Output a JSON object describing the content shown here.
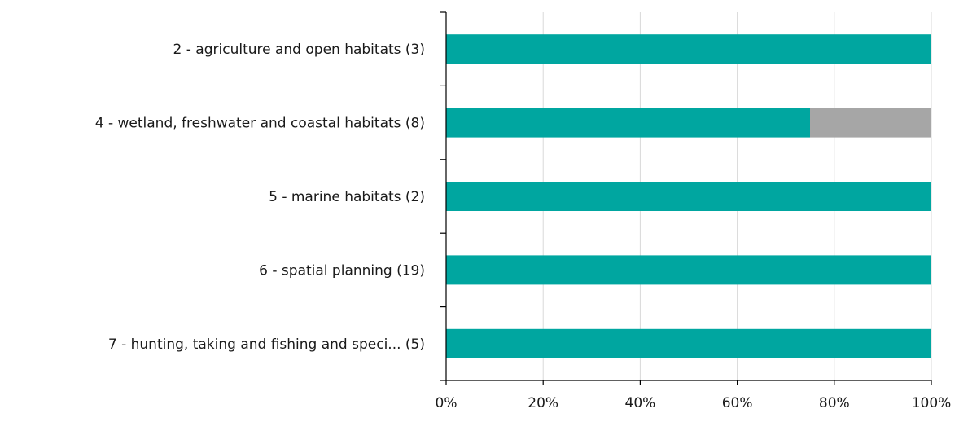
{
  "chart_data": {
    "type": "bar",
    "orientation": "horizontal",
    "stacked": true,
    "categories": [
      "2 - agriculture and open habitats (3)",
      "4 - wetland, freshwater and coastal habitats (8)",
      "5 - marine habitats (2)",
      "6 - spatial planning (19)",
      "7 - hunting, taking and fishing and speci... (5)"
    ],
    "series": [
      {
        "color": "#00a6a0",
        "values": [
          100,
          75,
          100,
          100,
          100
        ]
      },
      {
        "color": "#a6a6a6",
        "values": [
          0,
          25,
          0,
          0,
          0
        ]
      }
    ],
    "xlim": [
      0,
      100
    ],
    "xticks": [
      "0%",
      "20%",
      "40%",
      "60%",
      "80%",
      "100%"
    ],
    "grid": true,
    "legend": "none"
  }
}
